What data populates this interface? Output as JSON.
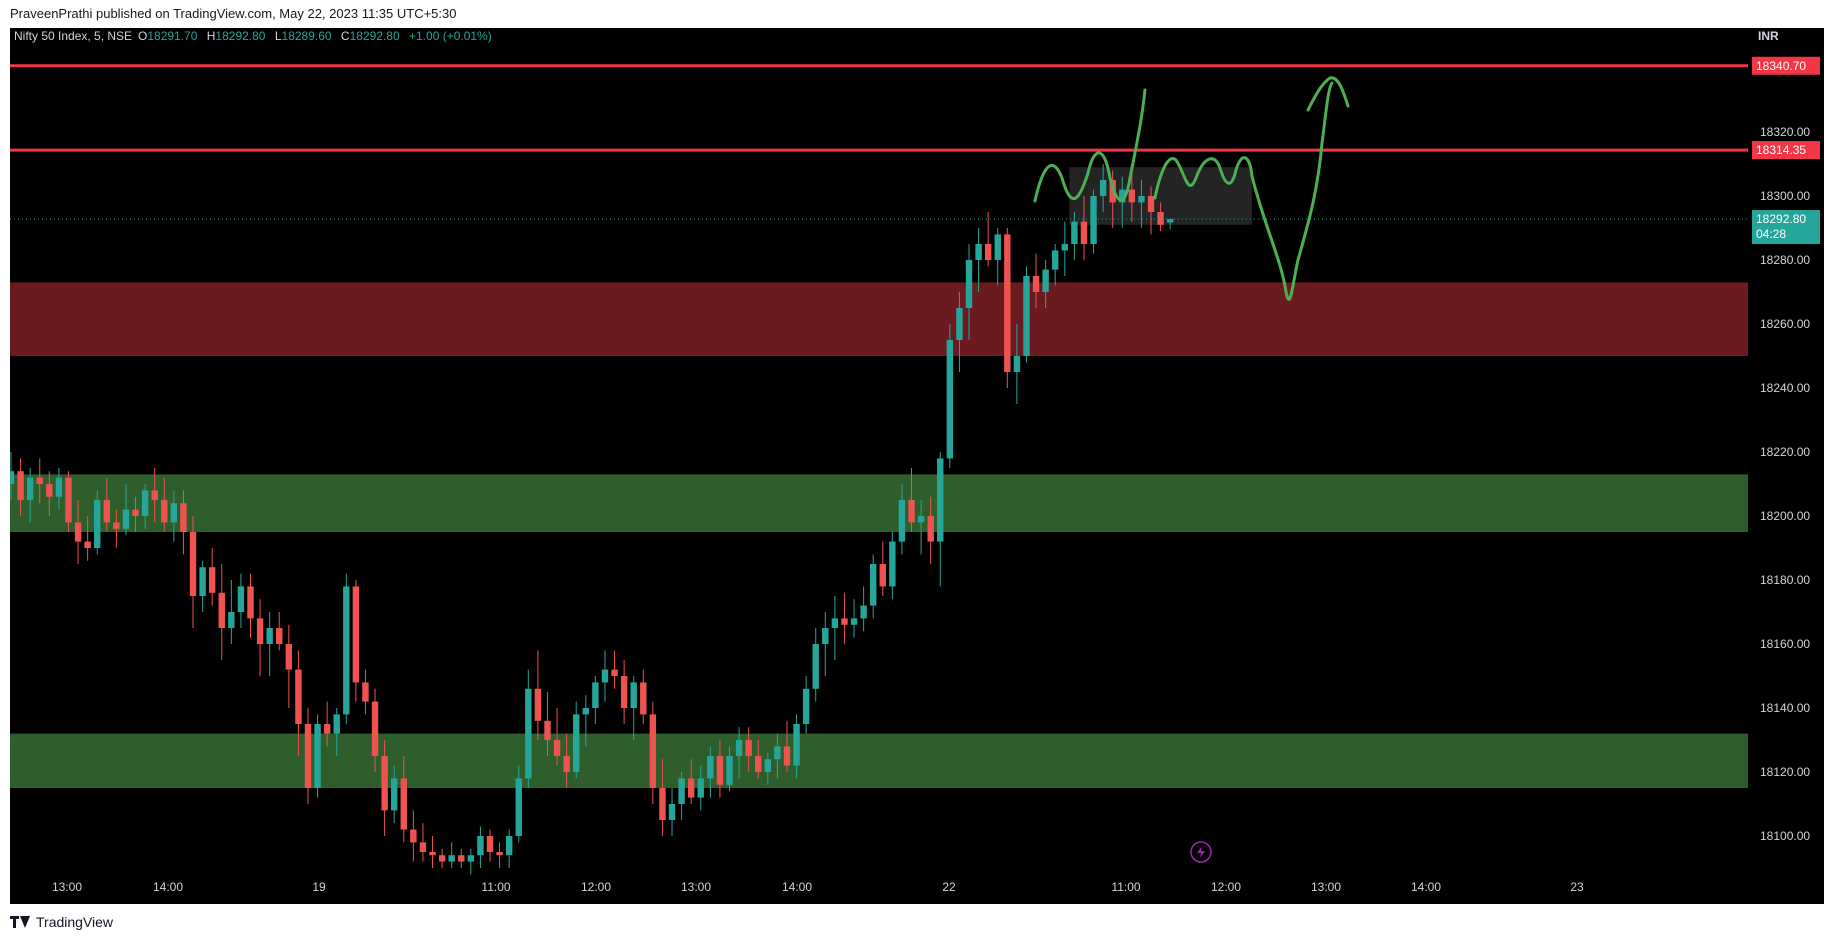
{
  "header": {
    "published_text": "PraveenPrathi published on TradingView.com, May 22, 2023 11:35 UTC+5:30"
  },
  "legend": {
    "symbol": "Nifty 50 Index, 5, NSE",
    "o_label": "O",
    "o_value": "18291.70",
    "h_label": "H",
    "h_value": "18292.80",
    "l_label": "L",
    "l_value": "18289.60",
    "c_label": "C",
    "c_value": "18292.80",
    "change": "+1.00 (+0.01%)"
  },
  "currency": "INR",
  "footer": {
    "brand": "TradingView"
  },
  "colors": {
    "up": "#26a69a",
    "down": "#ef5350",
    "background": "#000000",
    "resistance_line": "#f23645",
    "supply_zone": "#6b1a20",
    "demand_zone": "#2d5e2b",
    "drawing": "#4caf50",
    "consolidation_box": "#2a2a2a"
  },
  "chart_data": {
    "type": "candlestick",
    "interval": "5",
    "ylim": [
      18090,
      18350
    ],
    "y_ticks": [
      "18320.00",
      "18300.00",
      "18280.00",
      "18260.00",
      "18240.00",
      "18220.00",
      "18200.00",
      "18180.00",
      "18160.00",
      "18140.00",
      "18120.00",
      "18100.00"
    ],
    "x_ticks": [
      "13:00",
      "14:00",
      "19",
      "11:00",
      "12:00",
      "13:00",
      "14:00",
      "22",
      "11:00",
      "12:00",
      "13:00",
      "14:00",
      "23"
    ],
    "price_labels": {
      "resistance_top": "18340.70",
      "resistance_2": "18314.35",
      "last_price": "18292.80",
      "countdown": "04:28"
    },
    "horizontal_lines": [
      18340.7,
      18314.35
    ],
    "zones": [
      {
        "name": "supply",
        "from": 18250,
        "to": 18273
      },
      {
        "name": "demand-upper",
        "from": 18195,
        "to": 18213
      },
      {
        "name": "demand-lower",
        "from": 18115,
        "to": 18132
      }
    ],
    "consolidation_box": {
      "from_index": 111,
      "to_index": 129,
      "low": 18291,
      "high": 18309
    },
    "candles": [
      [
        18210,
        18220,
        18205,
        18214
      ],
      [
        18214,
        18218,
        18200,
        18205
      ],
      [
        18205,
        18215,
        18198,
        18212
      ],
      [
        18212,
        18218,
        18204,
        18210
      ],
      [
        18210,
        18214,
        18200,
        18206
      ],
      [
        18206,
        18215,
        18202,
        18212
      ],
      [
        18212,
        18214,
        18195,
        18198
      ],
      [
        18198,
        18205,
        18185,
        18192
      ],
      [
        18192,
        18200,
        18186,
        18190
      ],
      [
        18190,
        18208,
        18188,
        18205
      ],
      [
        18205,
        18212,
        18195,
        18198
      ],
      [
        18198,
        18202,
        18190,
        18196
      ],
      [
        18196,
        18210,
        18194,
        18202
      ],
      [
        18202,
        18206,
        18195,
        18200
      ],
      [
        18200,
        18210,
        18196,
        18208
      ],
      [
        18208,
        18215,
        18198,
        18205
      ],
      [
        18205,
        18212,
        18195,
        18198
      ],
      [
        18198,
        18208,
        18192,
        18204
      ],
      [
        18204,
        18208,
        18188,
        18195
      ],
      [
        18195,
        18200,
        18165,
        18175
      ],
      [
        18175,
        18186,
        18170,
        18184
      ],
      [
        18184,
        18190,
        18172,
        18176
      ],
      [
        18176,
        18185,
        18155,
        18165
      ],
      [
        18165,
        18180,
        18160,
        18170
      ],
      [
        18170,
        18182,
        18165,
        18178
      ],
      [
        18178,
        18182,
        18162,
        18168
      ],
      [
        18168,
        18174,
        18150,
        18160
      ],
      [
        18160,
        18170,
        18150,
        18165
      ],
      [
        18165,
        18170,
        18158,
        18160
      ],
      [
        18160,
        18166,
        18140,
        18152
      ],
      [
        18152,
        18158,
        18125,
        18135
      ],
      [
        18135,
        18140,
        18110,
        18115
      ],
      [
        18115,
        18138,
        18112,
        18135
      ],
      [
        18135,
        18142,
        18128,
        18132
      ],
      [
        18132,
        18140,
        18125,
        18138
      ],
      [
        18138,
        18182,
        18135,
        18178
      ],
      [
        18178,
        18180,
        18142,
        18148
      ],
      [
        18148,
        18152,
        18138,
        18142
      ],
      [
        18142,
        18146,
        18120,
        18125
      ],
      [
        18125,
        18130,
        18100,
        18108
      ],
      [
        18108,
        18122,
        18104,
        18118
      ],
      [
        18118,
        18125,
        18098,
        18102
      ],
      [
        18102,
        18108,
        18092,
        18098
      ],
      [
        18098,
        18104,
        18092,
        18095
      ],
      [
        18095,
        18100,
        18090,
        18094
      ],
      [
        18094,
        18096,
        18090,
        18092
      ],
      [
        18092,
        18098,
        18090,
        18094
      ],
      [
        18094,
        18096,
        18090,
        18092
      ],
      [
        18092,
        18096,
        18088,
        18094
      ],
      [
        18094,
        18103,
        18090,
        18100
      ],
      [
        18100,
        18102,
        18092,
        18095
      ],
      [
        18095,
        18098,
        18090,
        18094
      ],
      [
        18094,
        18102,
        18090,
        18100
      ],
      [
        18100,
        18122,
        18098,
        18118
      ],
      [
        18118,
        18152,
        18115,
        18146
      ],
      [
        18146,
        18158,
        18130,
        18136
      ],
      [
        18136,
        18145,
        18125,
        18130
      ],
      [
        18130,
        18140,
        18122,
        18125
      ],
      [
        18125,
        18132,
        18115,
        18120
      ],
      [
        18120,
        18142,
        18118,
        18138
      ],
      [
        18138,
        18144,
        18128,
        18140
      ],
      [
        18140,
        18150,
        18135,
        18148
      ],
      [
        18148,
        18158,
        18142,
        18152
      ],
      [
        18152,
        18158,
        18146,
        18150
      ],
      [
        18150,
        18155,
        18135,
        18140
      ],
      [
        18140,
        18150,
        18130,
        18148
      ],
      [
        18148,
        18152,
        18135,
        18138
      ],
      [
        18138,
        18142,
        18110,
        18115
      ],
      [
        18115,
        18124,
        18100,
        18105
      ],
      [
        18105,
        18115,
        18100,
        18110
      ],
      [
        18110,
        18120,
        18105,
        18118
      ],
      [
        18118,
        18124,
        18110,
        18112
      ],
      [
        18112,
        18122,
        18108,
        18118
      ],
      [
        18118,
        18128,
        18112,
        18125
      ],
      [
        18125,
        18130,
        18112,
        18116
      ],
      [
        18116,
        18128,
        18114,
        18125
      ],
      [
        18125,
        18134,
        18118,
        18130
      ],
      [
        18130,
        18134,
        18120,
        18125
      ],
      [
        18125,
        18130,
        18118,
        18120
      ],
      [
        18120,
        18126,
        18116,
        18124
      ],
      [
        18124,
        18132,
        18118,
        18128
      ],
      [
        18128,
        18136,
        18120,
        18122
      ],
      [
        18122,
        18138,
        18118,
        18135
      ],
      [
        18135,
        18150,
        18132,
        18146
      ],
      [
        18146,
        18165,
        18142,
        18160
      ],
      [
        18160,
        18170,
        18150,
        18165
      ],
      [
        18165,
        18175,
        18155,
        18168
      ],
      [
        18168,
        18176,
        18160,
        18166
      ],
      [
        18166,
        18174,
        18162,
        18168
      ],
      [
        18168,
        18178,
        18164,
        18172
      ],
      [
        18172,
        18188,
        18168,
        18185
      ],
      [
        18185,
        18192,
        18175,
        18178
      ],
      [
        18178,
        18195,
        18174,
        18192
      ],
      [
        18192,
        18210,
        18188,
        18205
      ],
      [
        18205,
        18215,
        18195,
        18198
      ],
      [
        18198,
        18205,
        18188,
        18200
      ],
      [
        18200,
        18206,
        18185,
        18192
      ],
      [
        18192,
        18220,
        18178,
        18218
      ],
      [
        18218,
        18260,
        18215,
        18255
      ],
      [
        18255,
        18270,
        18245,
        18265
      ],
      [
        18265,
        18285,
        18255,
        18280
      ],
      [
        18280,
        18290,
        18270,
        18285
      ],
      [
        18285,
        18295,
        18278,
        18280
      ],
      [
        18280,
        18290,
        18272,
        18288
      ],
      [
        18288,
        18290,
        18240,
        18245
      ],
      [
        18245,
        18260,
        18235,
        18250
      ],
      [
        18250,
        18278,
        18248,
        18275
      ],
      [
        18275,
        18282,
        18265,
        18270
      ],
      [
        18270,
        18280,
        18265,
        18277
      ],
      [
        18277,
        18285,
        18272,
        18283
      ],
      [
        18283,
        18292,
        18275,
        18285
      ],
      [
        18285,
        18295,
        18280,
        18292
      ],
      [
        18292,
        18300,
        18280,
        18285
      ],
      [
        18285,
        18302,
        18282,
        18300
      ],
      [
        18300,
        18310,
        18295,
        18305
      ],
      [
        18305,
        18308,
        18290,
        18298
      ],
      [
        18298,
        18306,
        18290,
        18302
      ],
      [
        18302,
        18310,
        18292,
        18298
      ],
      [
        18298,
        18305,
        18290,
        18300
      ],
      [
        18300,
        18303,
        18288,
        18295
      ],
      [
        18295,
        18298,
        18289,
        18291
      ],
      [
        18291.7,
        18292.8,
        18289.6,
        18292.8
      ]
    ]
  }
}
